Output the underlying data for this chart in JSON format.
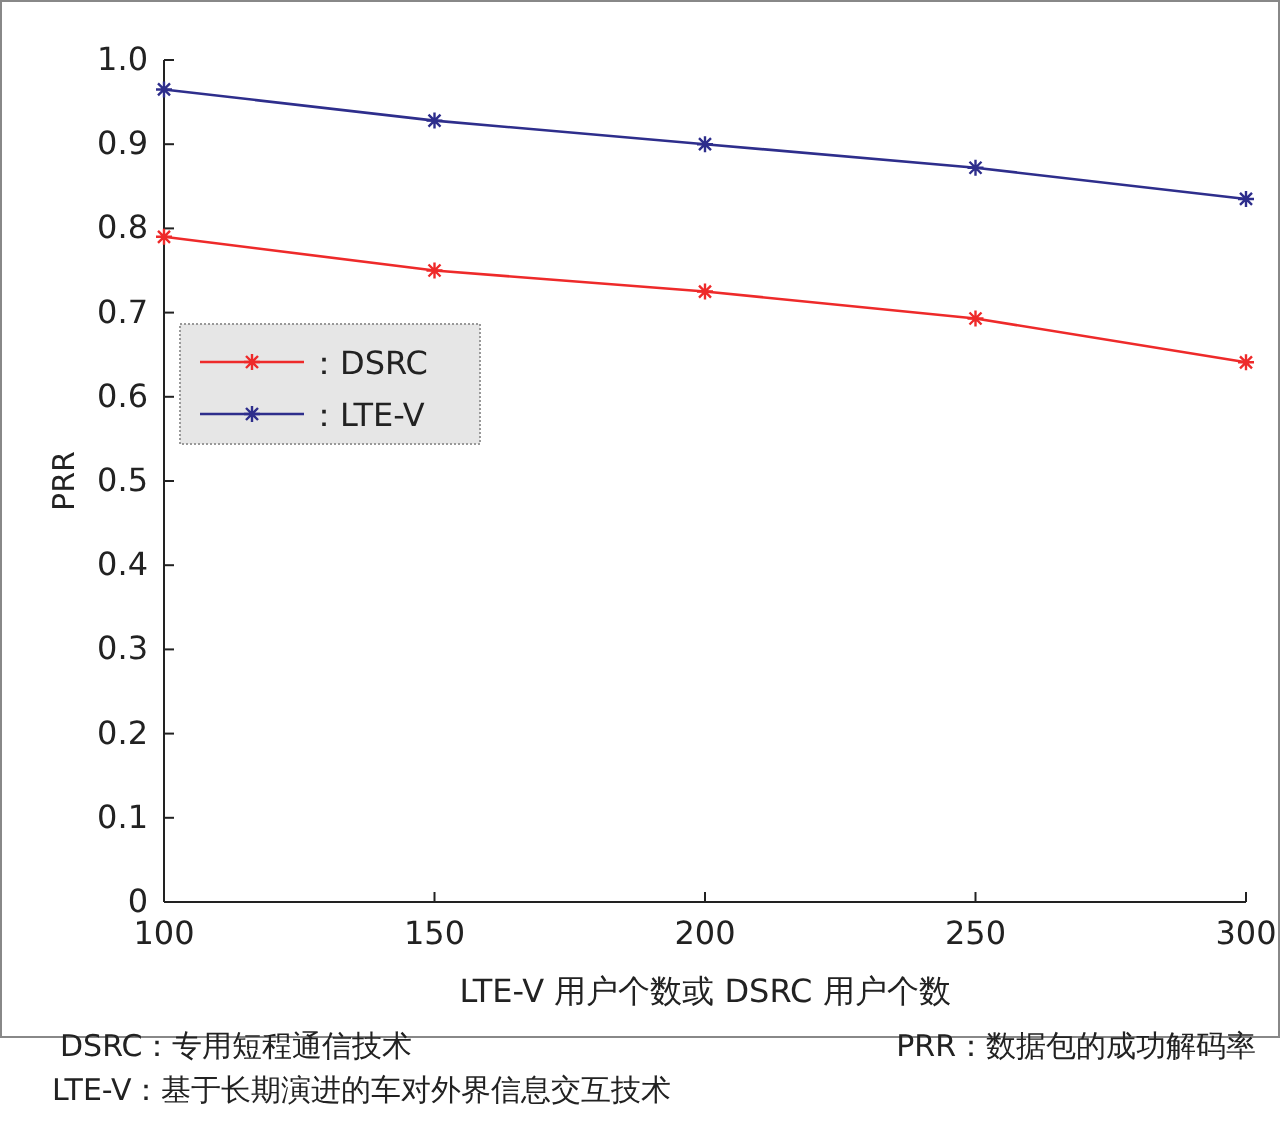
{
  "chart_data": {
    "type": "line",
    "xlabel": "LTE-V 用户个数或 DSRC 用户个数",
    "ylabel": "PRR",
    "x": [
      100,
      150,
      200,
      250,
      300
    ],
    "series": [
      {
        "name": "：DSRC",
        "color": "#ee2a2a",
        "values": [
          0.79,
          0.75,
          0.725,
          0.693,
          0.641
        ]
      },
      {
        "name": "：LTE-V",
        "color": "#2e2e8c",
        "values": [
          0.965,
          0.928,
          0.9,
          0.872,
          0.835
        ]
      }
    ],
    "xlim": [
      100,
      300
    ],
    "xticks": [
      100,
      150,
      200,
      250,
      300
    ],
    "ylim": [
      0,
      1
    ],
    "yticks": [
      0,
      0.1,
      0.2,
      0.3,
      0.4,
      0.5,
      0.6,
      0.7,
      0.8,
      0.9,
      {
        "value": 1,
        "label": "1.0"
      }
    ],
    "marker": "cross",
    "line_style": "solid",
    "legend": "top left",
    "grid": false,
    "annotations": [
      "DSRC：专用短程通信技术",
      "PRR：数据包的成功解码率",
      "LTE-V：基于长期演进的车对外界信息交互技术"
    ]
  }
}
